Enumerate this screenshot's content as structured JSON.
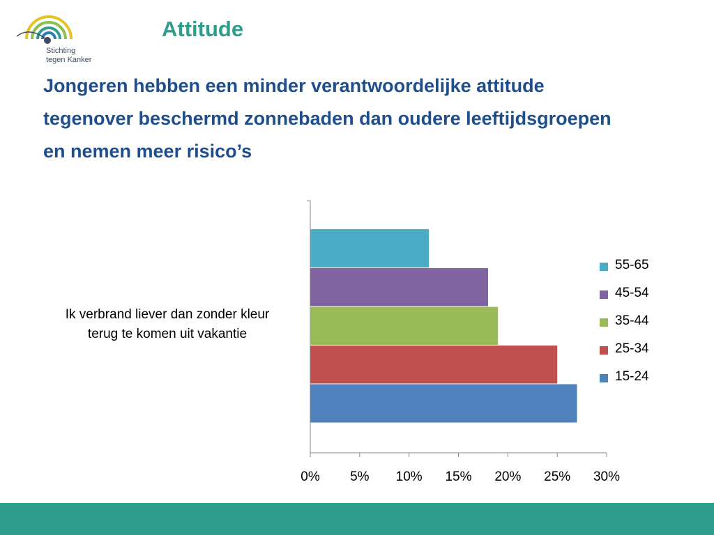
{
  "logo": {
    "line1": "Stichting",
    "line2": "tegen Kanker"
  },
  "title": "Attitude",
  "subtitle": [
    "Jongeren hebben een minder verantwoordelijke attitude",
    "tegenover beschermd zonnebaden dan oudere leeftijdsgroepen",
    "en nemen meer risico’s"
  ],
  "colors": {
    "brand": "#2e9e8c",
    "heading": "#1f4e8c"
  },
  "chart_data": {
    "type": "bar",
    "orientation": "horizontal",
    "title": "",
    "categories": [
      "Ik verbrand liever dan zonder kleur terug te komen uit vakantie"
    ],
    "category_lines": [
      "Ik verbrand liever dan zonder kleur",
      "terug te komen uit vakantie"
    ],
    "series": [
      {
        "name": "15-24",
        "values": [
          0.27
        ],
        "color": "#4f81bd"
      },
      {
        "name": "25-34",
        "values": [
          0.25
        ],
        "color": "#c0504d"
      },
      {
        "name": "35-44",
        "values": [
          0.19
        ],
        "color": "#9bbb59"
      },
      {
        "name": "45-54",
        "values": [
          0.18
        ],
        "color": "#8064a2"
      },
      {
        "name": "55-65",
        "values": [
          0.12
        ],
        "color": "#4bacc6"
      }
    ],
    "xlim": [
      0,
      0.3
    ],
    "xticks": [
      "0%",
      "5%",
      "10%",
      "15%",
      "20%",
      "25%",
      "30%"
    ],
    "legend_position": "right",
    "legend_order": [
      "55-65",
      "45-54",
      "35-44",
      "25-34",
      "15-24"
    ],
    "grid": false
  }
}
